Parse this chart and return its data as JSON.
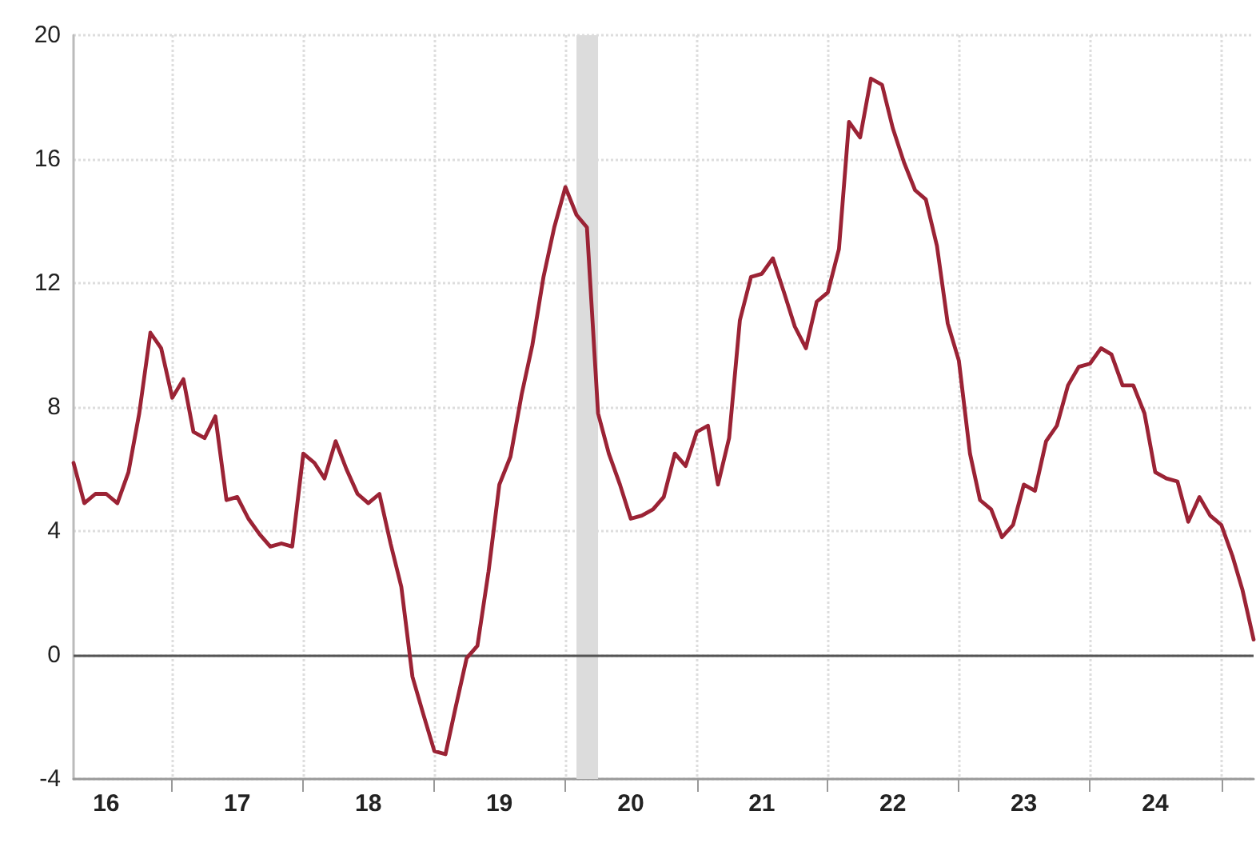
{
  "chart_data": {
    "type": "line",
    "x": [
      "2016-04",
      "2016-05",
      "2016-06",
      "2016-07",
      "2016-08",
      "2016-09",
      "2016-10",
      "2016-11",
      "2016-12",
      "2017-01",
      "2017-02",
      "2017-03",
      "2017-04",
      "2017-05",
      "2017-06",
      "2017-07",
      "2017-08",
      "2017-09",
      "2017-10",
      "2017-11",
      "2017-12",
      "2018-01",
      "2018-02",
      "2018-03",
      "2018-04",
      "2018-05",
      "2018-06",
      "2018-07",
      "2018-08",
      "2018-09",
      "2018-10",
      "2018-11",
      "2018-12",
      "2019-01",
      "2019-02",
      "2019-03",
      "2019-04",
      "2019-05",
      "2019-06",
      "2019-07",
      "2019-08",
      "2019-09",
      "2019-10",
      "2019-11",
      "2019-12",
      "2020-01",
      "2020-02",
      "2020-03",
      "2020-04",
      "2020-05",
      "2020-06",
      "2020-07",
      "2020-08",
      "2020-09",
      "2020-10",
      "2020-11",
      "2020-12",
      "2021-01",
      "2021-02",
      "2021-03",
      "2021-04",
      "2021-05",
      "2021-06",
      "2021-07",
      "2021-08",
      "2021-09",
      "2021-10",
      "2021-11",
      "2021-12",
      "2022-01",
      "2022-02",
      "2022-03",
      "2022-04",
      "2022-05",
      "2022-06",
      "2022-07",
      "2022-08",
      "2022-09",
      "2022-10",
      "2022-11",
      "2022-12",
      "2023-01",
      "2023-02",
      "2023-03",
      "2023-04",
      "2023-05",
      "2023-06",
      "2023-07",
      "2023-08",
      "2023-09",
      "2023-10",
      "2023-11",
      "2023-12",
      "2024-01",
      "2024-02",
      "2024-03",
      "2024-04",
      "2024-05",
      "2024-06",
      "2024-07",
      "2024-08",
      "2024-09",
      "2024-10",
      "2024-11",
      "2024-12",
      "2025-01",
      "2025-02",
      "2025-03",
      "2025-04"
    ],
    "series": [
      {
        "color": "#9b2335",
        "values": [
          6.2,
          4.9,
          5.2,
          5.2,
          4.9,
          5.9,
          7.8,
          10.4,
          9.9,
          8.3,
          8.9,
          7.2,
          7.0,
          7.7,
          5.0,
          5.1,
          4.4,
          3.9,
          3.5,
          3.6,
          3.5,
          6.5,
          6.2,
          5.7,
          6.9,
          6.0,
          5.2,
          4.9,
          5.2,
          3.6,
          2.2,
          -0.7,
          -1.9,
          -3.1,
          -3.2,
          -1.7,
          -0.1,
          0.3,
          2.7,
          5.5,
          6.4,
          8.4,
          10.0,
          12.2,
          13.8,
          15.1,
          14.2,
          13.8,
          7.8,
          6.5,
          5.5,
          4.4,
          4.5,
          4.7,
          5.1,
          6.5,
          6.1,
          7.2,
          7.4,
          5.5,
          7.0,
          10.8,
          12.2,
          12.3,
          12.8,
          11.7,
          10.6,
          9.9,
          11.4,
          11.7,
          13.1,
          17.2,
          16.7,
          18.6,
          18.4,
          17.0,
          15.9,
          15.0,
          14.7,
          13.2,
          10.7,
          9.5,
          6.5,
          5.0,
          4.7,
          3.8,
          4.2,
          5.5,
          5.3,
          6.9,
          7.4,
          8.7,
          9.3,
          9.4,
          9.9,
          9.7,
          8.7,
          8.7,
          7.8,
          5.9,
          5.7,
          5.6,
          4.3,
          5.1,
          4.5,
          4.2,
          3.2,
          2.1,
          0.5
        ]
      }
    ],
    "xlim": [
      "2016-04",
      "2025-04"
    ],
    "xticks": [
      {
        "value": "2016-07",
        "label": "16"
      },
      {
        "value": "2017-07",
        "label": "17"
      },
      {
        "value": "2018-07",
        "label": "18"
      },
      {
        "value": "2019-07",
        "label": "19"
      },
      {
        "value": "2020-07",
        "label": "20"
      },
      {
        "value": "2021-07",
        "label": "21"
      },
      {
        "value": "2022-07",
        "label": "22"
      },
      {
        "value": "2023-07",
        "label": "23"
      },
      {
        "value": "2024-07",
        "label": "24"
      },
      {
        "value": "2017-01",
        "label": null
      },
      {
        "value": "2018-01",
        "label": null
      },
      {
        "value": "2019-01",
        "label": null
      },
      {
        "value": "2020-01",
        "label": null
      },
      {
        "value": "2021-01",
        "label": null
      },
      {
        "value": "2022-01",
        "label": null
      },
      {
        "value": "2023-01",
        "label": null
      },
      {
        "value": "2024-01",
        "label": null
      },
      {
        "value": "2025-01",
        "label": null
      }
    ],
    "ylim": [
      -4,
      20
    ],
    "yticks": [
      -4,
      0,
      4,
      8,
      12,
      16,
      20
    ],
    "grid": true,
    "marker": "none",
    "line_style": "solid",
    "ref_lines": [
      {
        "axis": "y",
        "value": 0,
        "color": "#555555"
      }
    ],
    "bands": [
      {
        "axis": "x",
        "from": "2020-02",
        "to": "2020-04",
        "color": "#dcdcdc"
      }
    ]
  }
}
